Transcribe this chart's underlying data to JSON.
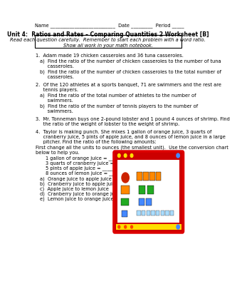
{
  "title": "Unit 4:  Ratios and Rates – Comparing Quantities 2 Worksheet [B]",
  "name_line": "Name ___________________________  Date _________  Period _____",
  "instr1": "Read each question carefully.  Remember to start each problem with a word ratio.",
  "instr2": "Show all work in your math notebook.",
  "q1_line": "1.  Adam made 19 chicken casseroles and 36 tuna casseroles.",
  "q1a1": "a)  Find the ratio of the number of chicken casseroles to the number of tuna",
  "q1a2": "     casseroles.",
  "q1b1": "b)  Find the ratio of the number of chicken casseroles to the total number of",
  "q1b2": "     casseroles.",
  "q2_line1": "2.  Of the 120 athletes at a sports banquet, 71 are swimmers and the rest are",
  "q2_line2": "     tennis players.",
  "q2a1": "a)  Find the ratio of the total number of athletes to the number of",
  "q2a2": "     swimmers.",
  "q2b1": "b)  Find the ratio of the number of tennis players to the number of",
  "q2b2": "     swimmers.",
  "q3_line1": "3.  Mr. Tonneman buys one 2-pound lobster and 1 pound 4 ounces of shrimp. Find",
  "q3_line2": "     the ratio of the weight of lobster to the weight of shrimp.",
  "q4_line1": "4.  Taylor is making punch. She mixes 1 gallon of orange juice, 3 quarts of",
  "q4_line2": "     cranberry juice, 5 pints of apple juice, and 8 ounces of lemon juice in a large",
  "q4_line3": "     pitcher. Find the ratio of the following amounts:",
  "q4_sub1": "First change all the units to ounces (the smallest unit).  Use the conversion chart",
  "q4_sub2": "below to help you.",
  "conv1": "1 gallon of orange juice = ________ ounces",
  "conv2": "3 quarts of cranberry juice = _______ ounces",
  "conv3": "5 pints of apple juice = _______ ounces",
  "conv4": "8 ounces of lemon juice = _______ ounces",
  "qa": "a)  Orange juice to apple juice",
  "qb": "b)  Cranberry juice to apple juice",
  "qc": "c)  Apple juice to lemon juice",
  "qd": "d)  Cranberry juice to orange juice",
  "qe": "e)  Lemon juice to orange juice",
  "bg_color": "#ffffff"
}
